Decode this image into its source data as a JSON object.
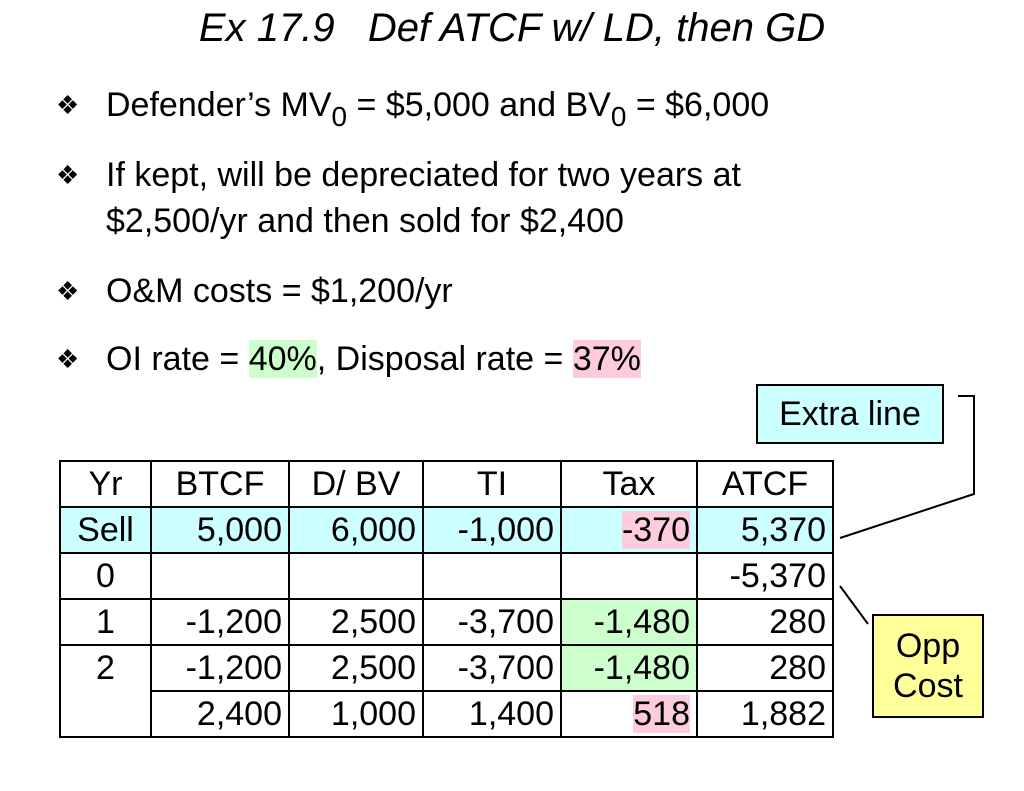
{
  "title": "Ex 17.9   Def ATCF w/ LD, then GD",
  "bullet_symbol": "❖",
  "bullets": {
    "b1": {
      "pre": "Defender’s MV",
      "sub1": "0",
      "mid": " = $5,000 and BV",
      "sub2": "0",
      "post": " = $6,000"
    },
    "b2": {
      "line1": "If kept, will be depreciated for two years at",
      "line2": "$2,500/yr and then sold for $2,400"
    },
    "b3": {
      "text": "O&M costs = $1,200/yr"
    },
    "b4": {
      "pre": "OI rate = ",
      "oi": "40%",
      "mid": ", Disposal rate = ",
      "disp": "37%"
    }
  },
  "callouts": {
    "extra": "Extra line",
    "opp_line1": "Opp",
    "opp_line2": "Cost"
  },
  "table": {
    "headers": [
      "Yr",
      "BTCF",
      "D/ BV",
      "TI",
      "Tax",
      "ATCF"
    ],
    "rows": [
      [
        "Sell",
        "5,000",
        "6,000",
        "-1,000",
        "-370",
        "5,370"
      ],
      [
        "0",
        "",
        "",
        "",
        "",
        "-5,370"
      ],
      [
        "1",
        "-1,200",
        "2,500",
        "-3,700",
        "-1,480",
        "280"
      ],
      [
        "2",
        "-1,200",
        "2,500",
        "-3,700",
        "-1,480",
        "280"
      ],
      [
        "",
        "2,400",
        "1,000",
        "1,400",
        "518",
        "1,882"
      ]
    ]
  },
  "colors": {
    "sell_row": "#ccffff",
    "green": "#ccffcc",
    "pink": "#ffccdd",
    "opp_cost": "#ffff99"
  }
}
